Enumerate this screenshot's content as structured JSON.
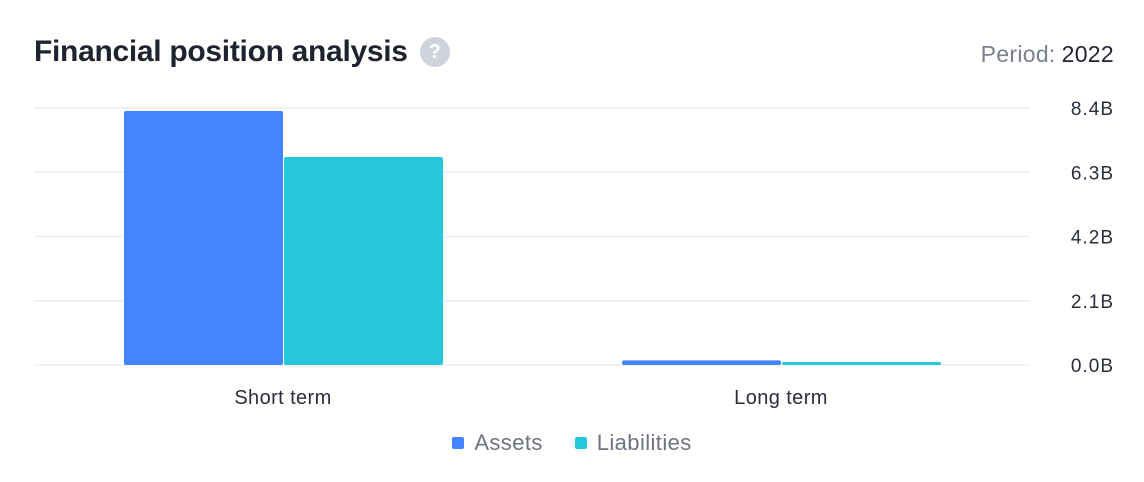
{
  "header": {
    "title": "Financial position analysis",
    "help_icon": "question-mark-icon",
    "period_label": "Period:",
    "period_value": "2022"
  },
  "legend": {
    "items": [
      {
        "label": "Assets",
        "color": "#4285fe"
      },
      {
        "label": "Liabilities",
        "color": "#27c6dc"
      }
    ]
  },
  "chart_data": {
    "type": "bar",
    "categories": [
      "Short term",
      "Long term"
    ],
    "series": [
      {
        "name": "Assets",
        "color": "#4285fe",
        "values": [
          8.3,
          0.15
        ]
      },
      {
        "name": "Liabilities",
        "color": "#27c6dc",
        "values": [
          6.8,
          0.1
        ]
      }
    ],
    "yticks": [
      "0.0B",
      "2.1B",
      "4.2B",
      "6.3B",
      "8.4B"
    ],
    "ylim": [
      0,
      8.4
    ],
    "unit": "B",
    "grid": true,
    "legend_position": "bottom"
  }
}
